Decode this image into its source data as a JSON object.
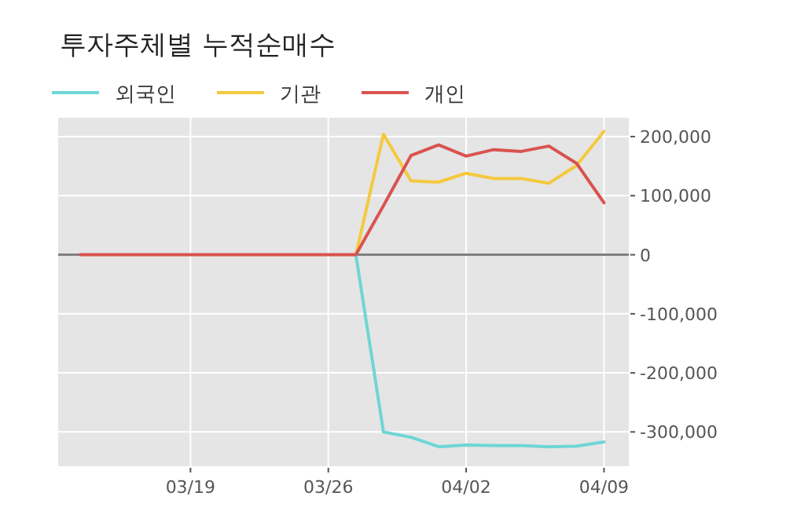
{
  "chart_data": {
    "type": "line",
    "title": "투자주체별 누적순매수",
    "categories": [
      null,
      null,
      null,
      null,
      "03/19",
      null,
      null,
      null,
      null,
      "03/26",
      null,
      null,
      null,
      null,
      "04/02",
      null,
      null,
      null,
      null,
      "04/09"
    ],
    "series": [
      {
        "name": "외국인",
        "color": "#6fd6d6",
        "values": [
          null,
          null,
          null,
          null,
          null,
          null,
          null,
          null,
          null,
          null,
          0,
          -300000,
          -309000,
          -325000,
          -322000,
          -323000,
          -323000,
          -325000,
          -324000,
          -317000
        ]
      },
      {
        "name": "기관",
        "color": "#f5c93f",
        "values": [
          null,
          null,
          null,
          null,
          null,
          null,
          null,
          null,
          null,
          null,
          0,
          204000,
          125000,
          123000,
          138000,
          129000,
          129000,
          121000,
          151000,
          209000
        ]
      },
      {
        "name": "개인",
        "color": "#d9534f",
        "values": [
          0,
          0,
          0,
          0,
          0,
          0,
          0,
          0,
          0,
          0,
          0,
          83000,
          168000,
          186000,
          167000,
          178000,
          175000,
          184000,
          155000,
          88000
        ]
      }
    ],
    "ylim": [
      -358000,
      232000
    ],
    "yticks": [
      {
        "value": -300000,
        "label": "-300,000"
      },
      {
        "value": -200000,
        "label": "-200,000"
      },
      {
        "value": -100000,
        "label": "-100,000"
      },
      0,
      {
        "value": 100000,
        "label": "100,000"
      },
      {
        "value": 200000,
        "label": "200,000"
      }
    ],
    "ref_lines": [
      {
        "axis": "y",
        "value": 0,
        "color": "#808080"
      }
    ],
    "grid": true,
    "legend": "top left"
  }
}
